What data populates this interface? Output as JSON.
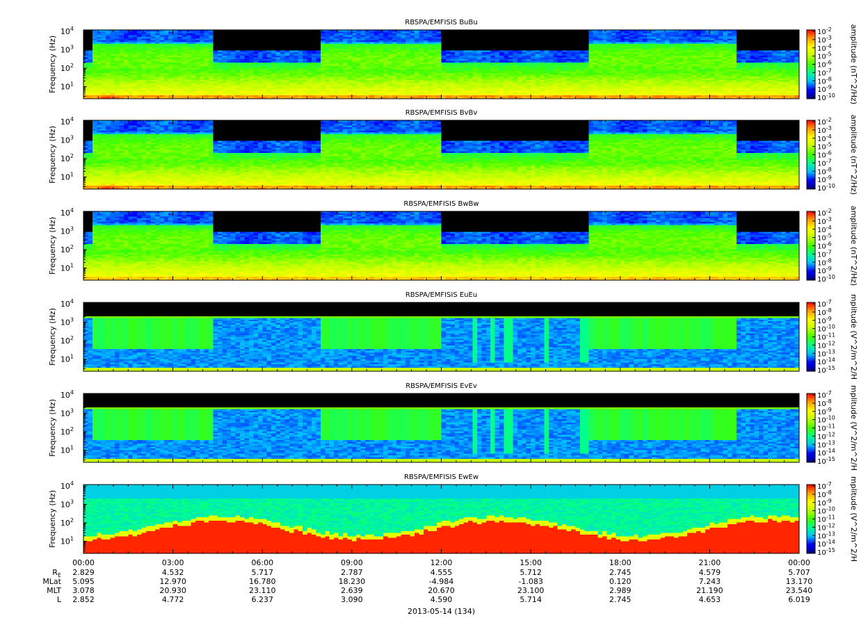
{
  "chart_data": {
    "type": "heatmap",
    "date_label": "2013-05-14 (134)",
    "x_ticks": [
      "00:00",
      "03:00",
      "06:00",
      "09:00",
      "12:00",
      "15:00",
      "18:00",
      "21:00",
      "00:00"
    ],
    "y_ticks": [
      {
        "base": "10",
        "exp": "1",
        "value": 10
      },
      {
        "base": "10",
        "exp": "2",
        "value": 100
      },
      {
        "base": "10",
        "exp": "3",
        "value": 1000
      },
      {
        "base": "10",
        "exp": "4",
        "value": 10000
      }
    ],
    "ylabel": "Frequency (Hz)",
    "y_scale": "log",
    "ylim": [
      2.2,
      12000
    ],
    "panels": [
      {
        "title": "RBSPA/EMFISIS  BuBu",
        "kind": "B",
        "cbar_label": "amplitude (nT^2/Hz)",
        "cbar_ticks": [
          "-2",
          "-3",
          "-4",
          "-5",
          "-6",
          "-7",
          "-8",
          "-9",
          "-10"
        ]
      },
      {
        "title": "RBSPA/EMFISIS  BvBv",
        "kind": "B",
        "cbar_label": "amplitude (nT^2/Hz)",
        "cbar_ticks": [
          "-2",
          "-3",
          "-4",
          "-5",
          "-6",
          "-7",
          "-8",
          "-9",
          "-10"
        ]
      },
      {
        "title": "RBSPA/EMFISIS  BwBw",
        "kind": "B3",
        "cbar_label": "amplitude (nT^2/Hz)",
        "cbar_ticks": [
          "-2",
          "-3",
          "-4",
          "-5",
          "-6",
          "-7",
          "-8",
          "-9",
          "-10"
        ]
      },
      {
        "title": "RBSPA/EMFISIS  EuEu",
        "kind": "E",
        "cbar_label": "mplitude (V^2/m^2/H",
        "cbar_ticks": [
          "-7",
          "-8",
          "-9",
          "-10",
          "-11",
          "-12",
          "-13",
          "-14",
          "-15"
        ]
      },
      {
        "title": "RBSPA/EMFISIS  EvEv",
        "kind": "E",
        "cbar_label": "mplitude (V^2/m^2/H",
        "cbar_ticks": [
          "-7",
          "-8",
          "-9",
          "-10",
          "-11",
          "-12",
          "-13",
          "-14",
          "-15"
        ]
      },
      {
        "title": "RBSPA/EMFISIS  EwEw",
        "kind": "Ew",
        "cbar_label": "mplitude (V^2/m^2/H",
        "cbar_ticks": [
          "-7",
          "-8",
          "-9",
          "-10",
          "-11",
          "-12",
          "-13",
          "-14",
          "-15"
        ]
      }
    ],
    "ephemeris": [
      {
        "label": "R",
        "sub": "E",
        "values": [
          "2.829",
          "4.532",
          "5.717",
          "2.787",
          "4.555",
          "5.712",
          "2.745",
          "4.579",
          "5.707"
        ]
      },
      {
        "label": "MLat",
        "sub": "",
        "values": [
          "5.095",
          "12.970",
          "16.780",
          "18.230",
          "-4.984",
          "-1.083",
          "0.120",
          "7.243",
          "13.170"
        ]
      },
      {
        "label": "MLT",
        "sub": "",
        "values": [
          "3.078",
          "20.930",
          "23.110",
          "2.639",
          "20.670",
          "23.100",
          "2.989",
          "21.190",
          "23.540"
        ]
      },
      {
        "label": "L",
        "sub": "",
        "values": [
          "2.852",
          "4.772",
          "6.237",
          "3.090",
          "4.590",
          "5.714",
          "2.745",
          "4.653",
          "6.019"
        ]
      }
    ],
    "colormap": [
      "#000080",
      "#0000ff",
      "#00c0ff",
      "#00ff90",
      "#40ff00",
      "#c0ff00",
      "#ffff00",
      "#ffa000",
      "#ff0000"
    ],
    "colors": {
      "background": "#ffffff",
      "no_data": "#000000"
    }
  }
}
